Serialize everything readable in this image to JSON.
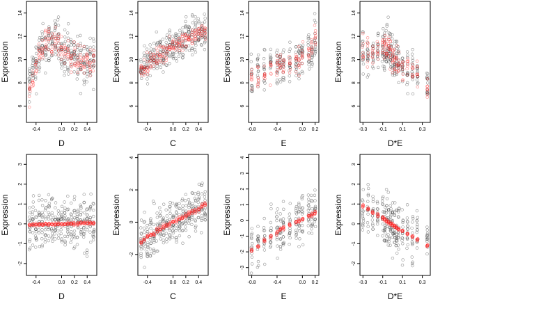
{
  "figure": {
    "background": "#ffffff",
    "point_color_black": "#333333",
    "point_color_red": "#ff2020"
  },
  "chart_data": [
    {
      "type": "scatter",
      "xlabel": "D",
      "ylabel": "Expression",
      "xlim": [
        -0.55,
        0.55
      ],
      "ylim": [
        4.6,
        15
      ],
      "xticks": [
        {
          "v": -0.4,
          "l": "-0.4"
        },
        {
          "v": 0.0,
          "l": "0.0"
        },
        {
          "v": 0.2,
          "l": "0.2"
        },
        {
          "v": 0.4,
          "l": "0.4"
        }
      ],
      "yticks": [
        {
          "v": 6,
          "l": "6"
        },
        {
          "v": 8,
          "l": "8"
        },
        {
          "v": 10,
          "l": "10"
        },
        {
          "v": 12,
          "l": "12"
        },
        {
          "v": 14,
          "l": "14"
        }
      ],
      "x_columns": [
        -0.5,
        -0.45,
        -0.4,
        -0.35,
        -0.3,
        -0.25,
        -0.2,
        -0.15,
        -0.1,
        -0.05,
        0.0,
        0.05,
        0.1,
        0.15,
        0.2,
        0.25,
        0.3,
        0.35,
        0.4,
        0.45,
        0.5
      ],
      "black": {
        "center": [
          8.0,
          9.0,
          9.7,
          10.3,
          10.8,
          11.2,
          11.4,
          11.5,
          11.5,
          11.3,
          11.0,
          10.9,
          10.6,
          10.4,
          10.2,
          10.1,
          10.0,
          9.9,
          9.8,
          9.8,
          9.7
        ],
        "spread": 2.0
      },
      "red": {
        "center": [
          7.5,
          8.5,
          9.5,
          10.3,
          11.0,
          11.5,
          11.7,
          11.6,
          11.5,
          11.2,
          10.9,
          10.8,
          10.5,
          10.3,
          10.1,
          10.0,
          9.9,
          9.8,
          9.8,
          9.7,
          9.7
        ],
        "spread": 1.2
      }
    },
    {
      "type": "scatter",
      "xlabel": "C",
      "ylabel": "Expression",
      "xlim": [
        -0.55,
        0.55
      ],
      "ylim": [
        4.6,
        15
      ],
      "xticks": [
        {
          "v": -0.4,
          "l": "-0.4"
        },
        {
          "v": 0.0,
          "l": "0.0"
        },
        {
          "v": 0.2,
          "l": "0.2"
        },
        {
          "v": 0.4,
          "l": "0.4"
        }
      ],
      "yticks": [
        {
          "v": 6,
          "l": "6"
        },
        {
          "v": 8,
          "l": "8"
        },
        {
          "v": 10,
          "l": "10"
        },
        {
          "v": 12,
          "l": "12"
        },
        {
          "v": 14,
          "l": "14"
        }
      ],
      "x_columns": [
        -0.5,
        -0.45,
        -0.4,
        -0.35,
        -0.3,
        -0.25,
        -0.2,
        -0.15,
        -0.1,
        -0.05,
        0.0,
        0.05,
        0.1,
        0.15,
        0.2,
        0.25,
        0.3,
        0.35,
        0.4,
        0.45,
        0.5
      ],
      "black": {
        "center": [
          9.0,
          9.2,
          9.5,
          9.8,
          10.0,
          10.2,
          10.4,
          10.6,
          10.8,
          11.0,
          11.2,
          11.3,
          11.5,
          11.6,
          11.8,
          11.9,
          12.0,
          12.1,
          12.2,
          12.3,
          12.3
        ],
        "spread": 1.6
      },
      "red": {
        "center": [
          9.2,
          9.4,
          9.6,
          9.8,
          10.0,
          10.2,
          10.4,
          10.6,
          10.8,
          11.0,
          11.2,
          11.3,
          11.5,
          11.6,
          11.8,
          11.9,
          12.0,
          12.1,
          12.2,
          12.3,
          12.4
        ],
        "spread": 0.7
      }
    },
    {
      "type": "scatter",
      "xlabel": "E",
      "ylabel": "Expression",
      "xlim": [
        -0.85,
        0.26
      ],
      "ylim": [
        4.6,
        15
      ],
      "xticks": [
        {
          "v": -0.8,
          "l": "-0.8"
        },
        {
          "v": -0.4,
          "l": "-0.4"
        },
        {
          "v": 0.0,
          "l": "0.0"
        },
        {
          "v": 0.2,
          "l": "0.2"
        }
      ],
      "yticks": [
        {
          "v": 6,
          "l": "6"
        },
        {
          "v": 8,
          "l": "8"
        },
        {
          "v": 10,
          "l": "10"
        },
        {
          "v": 12,
          "l": "12"
        },
        {
          "v": 14,
          "l": "14"
        }
      ],
      "x_columns": [
        -0.8,
        -0.7,
        -0.6,
        -0.5,
        -0.4,
        -0.35,
        -0.3,
        -0.2,
        -0.1,
        -0.05,
        0.0,
        0.1,
        0.15,
        0.2
      ],
      "black": {
        "center": [
          8.5,
          9.0,
          9.2,
          9.3,
          9.5,
          9.6,
          9.7,
          9.8,
          9.9,
          10.0,
          10.2,
          10.6,
          11.0,
          12.0
        ],
        "spread": 1.8
      },
      "red": {
        "center": [
          8.2,
          8.6,
          8.8,
          9.0,
          9.3,
          9.4,
          9.5,
          9.7,
          9.9,
          10.0,
          10.3,
          10.8,
          11.2,
          11.8
        ],
        "spread": 1.0
      }
    },
    {
      "type": "scatter",
      "xlabel": "D*E",
      "ylabel": "Expression",
      "xlim": [
        -0.33,
        0.38
      ],
      "ylim": [
        4.6,
        15
      ],
      "xticks": [
        {
          "v": -0.3,
          "l": "-0.3"
        },
        {
          "v": -0.1,
          "l": "-0.1"
        },
        {
          "v": 0.1,
          "l": "0.1"
        },
        {
          "v": 0.3,
          "l": "0.3"
        }
      ],
      "yticks": [
        {
          "v": 6,
          "l": "6"
        },
        {
          "v": 8,
          "l": "8"
        },
        {
          "v": 10,
          "l": "10"
        },
        {
          "v": 12,
          "l": "12"
        },
        {
          "v": 14,
          "l": "14"
        }
      ],
      "x_columns": [
        -0.3,
        -0.25,
        -0.2,
        -0.15,
        -0.1,
        -0.08,
        -0.06,
        -0.04,
        -0.02,
        0.0,
        0.02,
        0.04,
        0.06,
        0.1,
        0.15,
        0.2,
        0.25,
        0.35
      ],
      "black": {
        "center": [
          10.5,
          10.5,
          10.5,
          10.8,
          11.0,
          11.2,
          11.0,
          11.0,
          10.8,
          10.5,
          10.2,
          10.0,
          9.8,
          9.5,
          9.3,
          9.0,
          8.8,
          7.8
        ],
        "spread": 1.8
      },
      "red": {
        "center": [
          10.4,
          10.4,
          10.5,
          10.6,
          10.8,
          11.0,
          10.9,
          10.8,
          10.6,
          10.4,
          10.1,
          9.9,
          9.7,
          9.4,
          9.2,
          9.0,
          8.8,
          7.5
        ],
        "spread": 1.2
      }
    },
    {
      "type": "scatter",
      "xlabel": "D",
      "ylabel": "Expression",
      "xlim": [
        -0.55,
        0.55
      ],
      "ylim": [
        -2.6,
        3.5
      ],
      "xticks": [
        {
          "v": -0.4,
          "l": "-0.4"
        },
        {
          "v": 0.0,
          "l": "0.0"
        },
        {
          "v": 0.2,
          "l": "0.2"
        },
        {
          "v": 0.4,
          "l": "0.4"
        }
      ],
      "yticks": [
        {
          "v": -2,
          "l": "-2"
        },
        {
          "v": -1,
          "l": "-1"
        },
        {
          "v": 0,
          "l": "0"
        },
        {
          "v": 1,
          "l": "1"
        },
        {
          "v": 2,
          "l": "2"
        },
        {
          "v": 3,
          "l": "3"
        }
      ],
      "x_columns": [
        -0.5,
        -0.45,
        -0.4,
        -0.35,
        -0.3,
        -0.25,
        -0.2,
        -0.15,
        -0.1,
        -0.05,
        0.0,
        0.05,
        0.1,
        0.15,
        0.2,
        0.25,
        0.3,
        0.35,
        0.4,
        0.45,
        0.5
      ],
      "black": {
        "center": [
          -0.2,
          -0.1,
          0.0,
          0.1,
          0.1,
          0.2,
          0.2,
          0.2,
          0.1,
          0.0,
          -0.1,
          -0.1,
          0.0,
          0.0,
          0.1,
          0.1,
          0.1,
          0.0,
          0.0,
          0.0,
          0.0
        ],
        "spread": 1.3
      },
      "red": {
        "center": [
          -0.05,
          -0.05,
          -0.04,
          -0.03,
          -0.03,
          -0.02,
          -0.02,
          -0.01,
          0.0,
          0.0,
          0.0,
          0.0,
          0.01,
          0.01,
          0.02,
          0.02,
          0.03,
          0.03,
          0.04,
          0.04,
          0.05
        ],
        "spread": 0.08
      }
    },
    {
      "type": "scatter",
      "xlabel": "C",
      "ylabel": "Expression",
      "xlim": [
        -0.55,
        0.55
      ],
      "ylim": [
        -3.3,
        4.2
      ],
      "xticks": [
        {
          "v": -0.4,
          "l": "-0.4"
        },
        {
          "v": 0.0,
          "l": "0.0"
        },
        {
          "v": 0.2,
          "l": "0.2"
        },
        {
          "v": 0.4,
          "l": "0.4"
        }
      ],
      "yticks": [
        {
          "v": -2,
          "l": "-2"
        },
        {
          "v": 0,
          "l": "0"
        },
        {
          "v": 2,
          "l": "2"
        },
        {
          "v": 4,
          "l": "4"
        }
      ],
      "x_columns": [
        -0.5,
        -0.45,
        -0.4,
        -0.35,
        -0.3,
        -0.25,
        -0.2,
        -0.15,
        -0.1,
        -0.05,
        0.0,
        0.05,
        0.1,
        0.15,
        0.2,
        0.25,
        0.3,
        0.35,
        0.4,
        0.45,
        0.5
      ],
      "black": {
        "center": [
          -1.3,
          -1.1,
          -1.0,
          -0.8,
          -0.7,
          -0.5,
          -0.4,
          -0.3,
          -0.2,
          0.0,
          0.1,
          0.2,
          0.3,
          0.4,
          0.5,
          0.6,
          0.7,
          0.8,
          0.9,
          1.0,
          1.2
        ],
        "spread": 1.4
      },
      "red": {
        "center": [
          -1.2,
          -1.1,
          -0.9,
          -0.8,
          -0.7,
          -0.5,
          -0.4,
          -0.3,
          -0.2,
          -0.1,
          0.0,
          0.1,
          0.2,
          0.3,
          0.4,
          0.5,
          0.6,
          0.7,
          0.8,
          1.0,
          1.1
        ],
        "spread": 0.15
      }
    },
    {
      "type": "scatter",
      "xlabel": "E",
      "ylabel": "Expression",
      "xlim": [
        -0.85,
        0.26
      ],
      "ylim": [
        -3.5,
        4.2
      ],
      "xticks": [
        {
          "v": -0.8,
          "l": "-0.8"
        },
        {
          "v": -0.4,
          "l": "-0.4"
        },
        {
          "v": 0.0,
          "l": "0.0"
        },
        {
          "v": 0.2,
          "l": "0.2"
        }
      ],
      "yticks": [
        {
          "v": -3,
          "l": "-3"
        },
        {
          "v": -2,
          "l": "-2"
        },
        {
          "v": -1,
          "l": "-1"
        },
        {
          "v": 0,
          "l": "0"
        },
        {
          "v": 1,
          "l": "1"
        },
        {
          "v": 2,
          "l": "2"
        },
        {
          "v": 3,
          "l": "3"
        },
        {
          "v": 4,
          "l": "4"
        }
      ],
      "x_columns": [
        -0.8,
        -0.7,
        -0.6,
        -0.5,
        -0.4,
        -0.35,
        -0.3,
        -0.2,
        -0.1,
        -0.05,
        0.0,
        0.1,
        0.15,
        0.2
      ],
      "black": {
        "center": [
          -1.8,
          -1.5,
          -1.2,
          -1.0,
          -0.7,
          -0.6,
          -0.5,
          -0.3,
          -0.1,
          0.0,
          0.1,
          0.3,
          0.4,
          0.6
        ],
        "spread": 1.5
      },
      "red": {
        "center": [
          -1.9,
          -1.6,
          -1.3,
          -1.0,
          -0.8,
          -0.6,
          -0.5,
          -0.3,
          -0.1,
          0.0,
          0.1,
          0.3,
          0.4,
          0.5
        ],
        "spread": 0.12
      }
    },
    {
      "type": "scatter",
      "xlabel": "D*E",
      "ylabel": "Expression",
      "xlim": [
        -0.33,
        0.38
      ],
      "ylim": [
        -2.6,
        3.5
      ],
      "xticks": [
        {
          "v": -0.3,
          "l": "-0.3"
        },
        {
          "v": -0.1,
          "l": "-0.1"
        },
        {
          "v": 0.1,
          "l": "0.1"
        },
        {
          "v": 0.3,
          "l": "0.3"
        }
      ],
      "yticks": [
        {
          "v": -2,
          "l": "-2"
        },
        {
          "v": -1,
          "l": "-1"
        },
        {
          "v": 0,
          "l": "0"
        },
        {
          "v": 1,
          "l": "1"
        },
        {
          "v": 2,
          "l": "2"
        },
        {
          "v": 3,
          "l": "3"
        }
      ],
      "x_columns": [
        -0.3,
        -0.25,
        -0.2,
        -0.15,
        -0.1,
        -0.08,
        -0.06,
        -0.04,
        -0.02,
        0.0,
        0.02,
        0.04,
        0.06,
        0.1,
        0.15,
        0.2,
        0.25,
        0.35
      ],
      "black": {
        "center": [
          0.8,
          0.6,
          0.5,
          0.4,
          0.3,
          0.2,
          0.1,
          0.0,
          0.0,
          -0.1,
          -0.2,
          -0.3,
          -0.3,
          -0.4,
          -0.5,
          -0.6,
          -0.8,
          -1.0
        ],
        "spread": 1.4
      },
      "red": {
        "center": [
          0.9,
          0.75,
          0.6,
          0.45,
          0.3,
          0.22,
          0.15,
          0.08,
          0.02,
          -0.05,
          -0.12,
          -0.18,
          -0.25,
          -0.35,
          -0.5,
          -0.65,
          -0.8,
          -1.1
        ],
        "spread": 0.08
      }
    }
  ]
}
